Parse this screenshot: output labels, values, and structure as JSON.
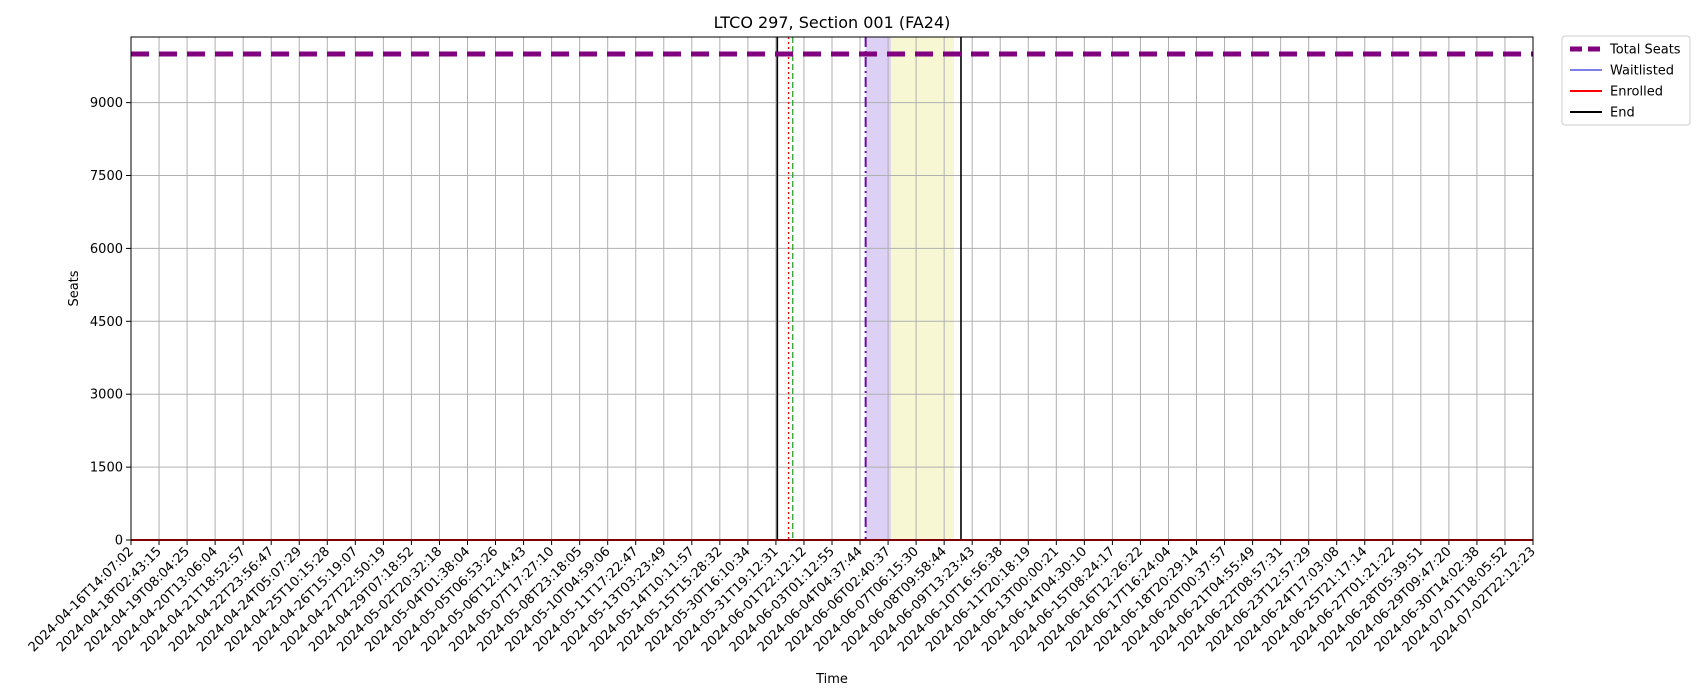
{
  "chart_data": {
    "type": "line",
    "title": "LTCO 297, Section 001 (FA24)",
    "xlabel": "Time",
    "ylabel": "Seats",
    "ylim": [
      0,
      10350
    ],
    "yticks": [
      0,
      1500,
      3000,
      4500,
      6000,
      7500,
      9000
    ],
    "x": [
      "2024-04-16T14:07:02",
      "2024-04-18T02:43:15",
      "2024-04-19T08:04:25",
      "2024-04-20T13:06:04",
      "2024-04-21T18:52:57",
      "2024-04-22T23:56:47",
      "2024-04-24T05:07:29",
      "2024-04-25T10:15:28",
      "2024-04-26T15:19:07",
      "2024-04-27T22:50:19",
      "2024-04-29T07:18:52",
      "2024-05-02T20:32:18",
      "2024-05-04T01:38:04",
      "2024-05-05T06:53:26",
      "2024-05-06T12:14:43",
      "2024-05-07T17:27:10",
      "2024-05-08T23:18:05",
      "2024-05-10T04:59:06",
      "2024-05-11T17:22:47",
      "2024-05-13T03:23:49",
      "2024-05-14T10:11:57",
      "2024-05-15T15:28:32",
      "2024-05-30T16:10:34",
      "2024-05-31T19:12:31",
      "2024-06-01T22:12:12",
      "2024-06-03T01:12:55",
      "2024-06-04T04:37:44",
      "2024-06-06T02:40:37",
      "2024-06-07T06:15:30",
      "2024-06-08T09:58:44",
      "2024-06-09T13:23:43",
      "2024-06-10T16:56:38",
      "2024-06-11T20:18:19",
      "2024-06-13T00:00:21",
      "2024-06-14T04:30:10",
      "2024-06-15T08:24:17",
      "2024-06-16T12:26:22",
      "2024-06-17T16:24:04",
      "2024-06-18T20:29:14",
      "2024-06-20T00:37:57",
      "2024-06-21T04:55:49",
      "2024-06-22T08:57:31",
      "2024-06-23T12:57:29",
      "2024-06-24T17:03:08",
      "2024-06-25T21:17:14",
      "2024-06-27T01:21:22",
      "2024-06-28T05:39:51",
      "2024-06-29T09:47:20",
      "2024-06-30T14:02:38",
      "2024-07-01T18:05:52",
      "2024-07-02T22:12:23"
    ],
    "series": [
      {
        "name": "Total Seats",
        "value": 9999,
        "color": "#800080",
        "style": "dashed-thick"
      },
      {
        "name": "Waitlisted",
        "value": 0,
        "color": "#3333dd",
        "style": "solid-thin"
      },
      {
        "name": "Enrolled",
        "value": 0,
        "color": "#ff0000",
        "style": "solid"
      },
      {
        "name": "End",
        "color": "#000000",
        "style": "solid"
      }
    ],
    "markers": {
      "black_solid_1": 23.05,
      "red_dotted": 23.45,
      "green_dashed": 23.6,
      "purple_dashdot": 26.2,
      "black_solid_2": 29.6
    },
    "shaded_regions": [
      {
        "from": 26.2,
        "to": 27.1,
        "color": "#dcd0f5"
      },
      {
        "from": 27.1,
        "to": 29.35,
        "color": "#f7f7d4"
      }
    ],
    "grid": true,
    "legend_position": "outside-top-right"
  }
}
